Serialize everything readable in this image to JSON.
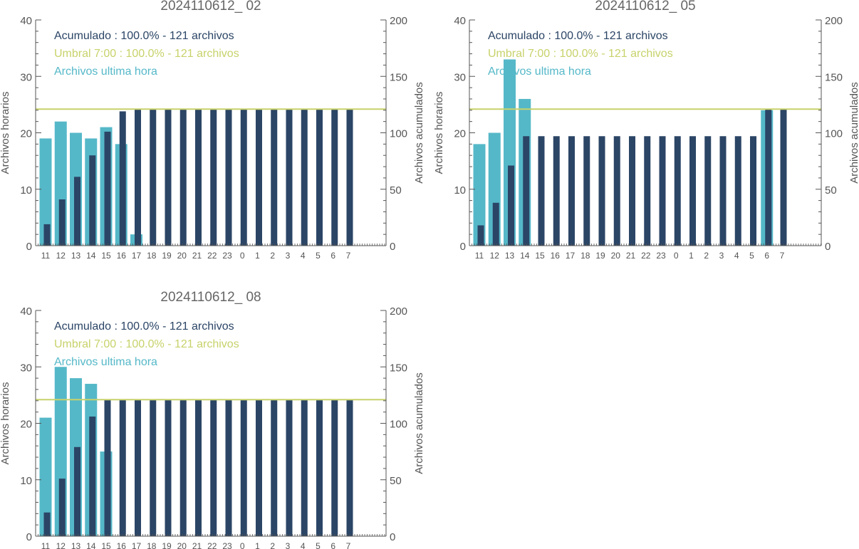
{
  "colors": {
    "hourly": "#55B8C8",
    "cumulative": "#2B4566",
    "threshold": "#C8D26A",
    "axis": "#555555",
    "title": "#666666"
  },
  "axes": {
    "left_label": "Archivos horarios",
    "right_label": "Archivos acumulados",
    "left_ticks": [
      "0",
      "10",
      "20",
      "30",
      "40"
    ],
    "right_ticks": [
      "0",
      "50",
      "100",
      "150",
      "200"
    ]
  },
  "legend": {
    "cumulative": "Acumulado : 100.0% - 121 archivos",
    "threshold": "Umbral 7:00 : 100.0% - 121 archivos",
    "hourly": "Archivos ultima hora"
  },
  "chart_data": [
    {
      "type": "bar",
      "title": "2024110612_ 02",
      "categories": [
        "11",
        "12",
        "13",
        "14",
        "15",
        "16",
        "17",
        "18",
        "19",
        "20",
        "21",
        "22",
        "23",
        "0",
        "1",
        "2",
        "3",
        "4",
        "5",
        "6",
        "7"
      ],
      "ylim": [
        0,
        40
      ],
      "y2lim": [
        0,
        200
      ],
      "threshold": 121,
      "series": [
        {
          "name": "Archivos ultima hora",
          "axis": "left",
          "values": [
            19,
            22,
            20,
            19,
            21,
            18,
            2,
            0,
            0,
            0,
            0,
            0,
            0,
            0,
            0,
            0,
            0,
            0,
            0,
            0,
            0
          ]
        },
        {
          "name": "Acumulado",
          "axis": "right",
          "values": [
            19,
            41,
            61,
            80,
            101,
            119,
            121,
            121,
            121,
            121,
            121,
            121,
            121,
            121,
            121,
            121,
            121,
            121,
            121,
            121,
            121
          ]
        }
      ]
    },
    {
      "type": "bar",
      "title": "2024110612_ 05",
      "categories": [
        "11",
        "12",
        "13",
        "14",
        "15",
        "16",
        "17",
        "18",
        "19",
        "20",
        "21",
        "22",
        "23",
        "0",
        "1",
        "2",
        "3",
        "4",
        "5",
        "6",
        "7"
      ],
      "ylim": [
        0,
        40
      ],
      "y2lim": [
        0,
        200
      ],
      "threshold": 121,
      "series": [
        {
          "name": "Archivos ultima hora",
          "axis": "left",
          "values": [
            18,
            20,
            33,
            26,
            0,
            0,
            0,
            0,
            0,
            0,
            0,
            0,
            0,
            0,
            0,
            0,
            0,
            0,
            0,
            24,
            0
          ]
        },
        {
          "name": "Acumulado",
          "axis": "right",
          "values": [
            18,
            38,
            71,
            97,
            97,
            97,
            97,
            97,
            97,
            97,
            97,
            97,
            97,
            97,
            97,
            97,
            97,
            97,
            97,
            121,
            121
          ]
        }
      ]
    },
    {
      "type": "bar",
      "title": "2024110612_ 08",
      "categories": [
        "11",
        "12",
        "13",
        "14",
        "15",
        "16",
        "17",
        "18",
        "19",
        "20",
        "21",
        "22",
        "23",
        "0",
        "1",
        "2",
        "3",
        "4",
        "5",
        "6",
        "7"
      ],
      "ylim": [
        0,
        40
      ],
      "y2lim": [
        0,
        200
      ],
      "threshold": 121,
      "series": [
        {
          "name": "Archivos ultima hora",
          "axis": "left",
          "values": [
            21,
            30,
            28,
            27,
            15,
            0,
            0,
            0,
            0,
            0,
            0,
            0,
            0,
            0,
            0,
            0,
            0,
            0,
            0,
            0,
            0
          ]
        },
        {
          "name": "Acumulado",
          "axis": "right",
          "values": [
            21,
            51,
            79,
            106,
            121,
            121,
            121,
            121,
            121,
            121,
            121,
            121,
            121,
            121,
            121,
            121,
            121,
            121,
            121,
            121,
            121
          ]
        }
      ]
    }
  ]
}
